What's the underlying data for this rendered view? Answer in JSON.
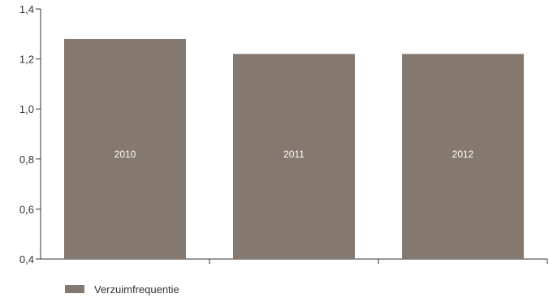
{
  "chart_data": {
    "type": "bar",
    "categories": [
      "2010",
      "2011",
      "2012"
    ],
    "series": [
      {
        "name": "Verzuimfrequentie",
        "values": [
          1.28,
          1.22,
          1.22
        ]
      }
    ],
    "ylim": [
      0.4,
      1.4
    ],
    "yticks": [
      "0,4",
      "0,6",
      "0,8",
      "1,0",
      "1,2",
      "1,4"
    ],
    "ytick_values": [
      0.4,
      0.6,
      0.8,
      1.0,
      1.2,
      1.4
    ],
    "grid": false,
    "legend_position": "bottom-left",
    "bar_color": "#85786f",
    "bar_label_color": "#ffffff",
    "axis_color": "#333333"
  }
}
